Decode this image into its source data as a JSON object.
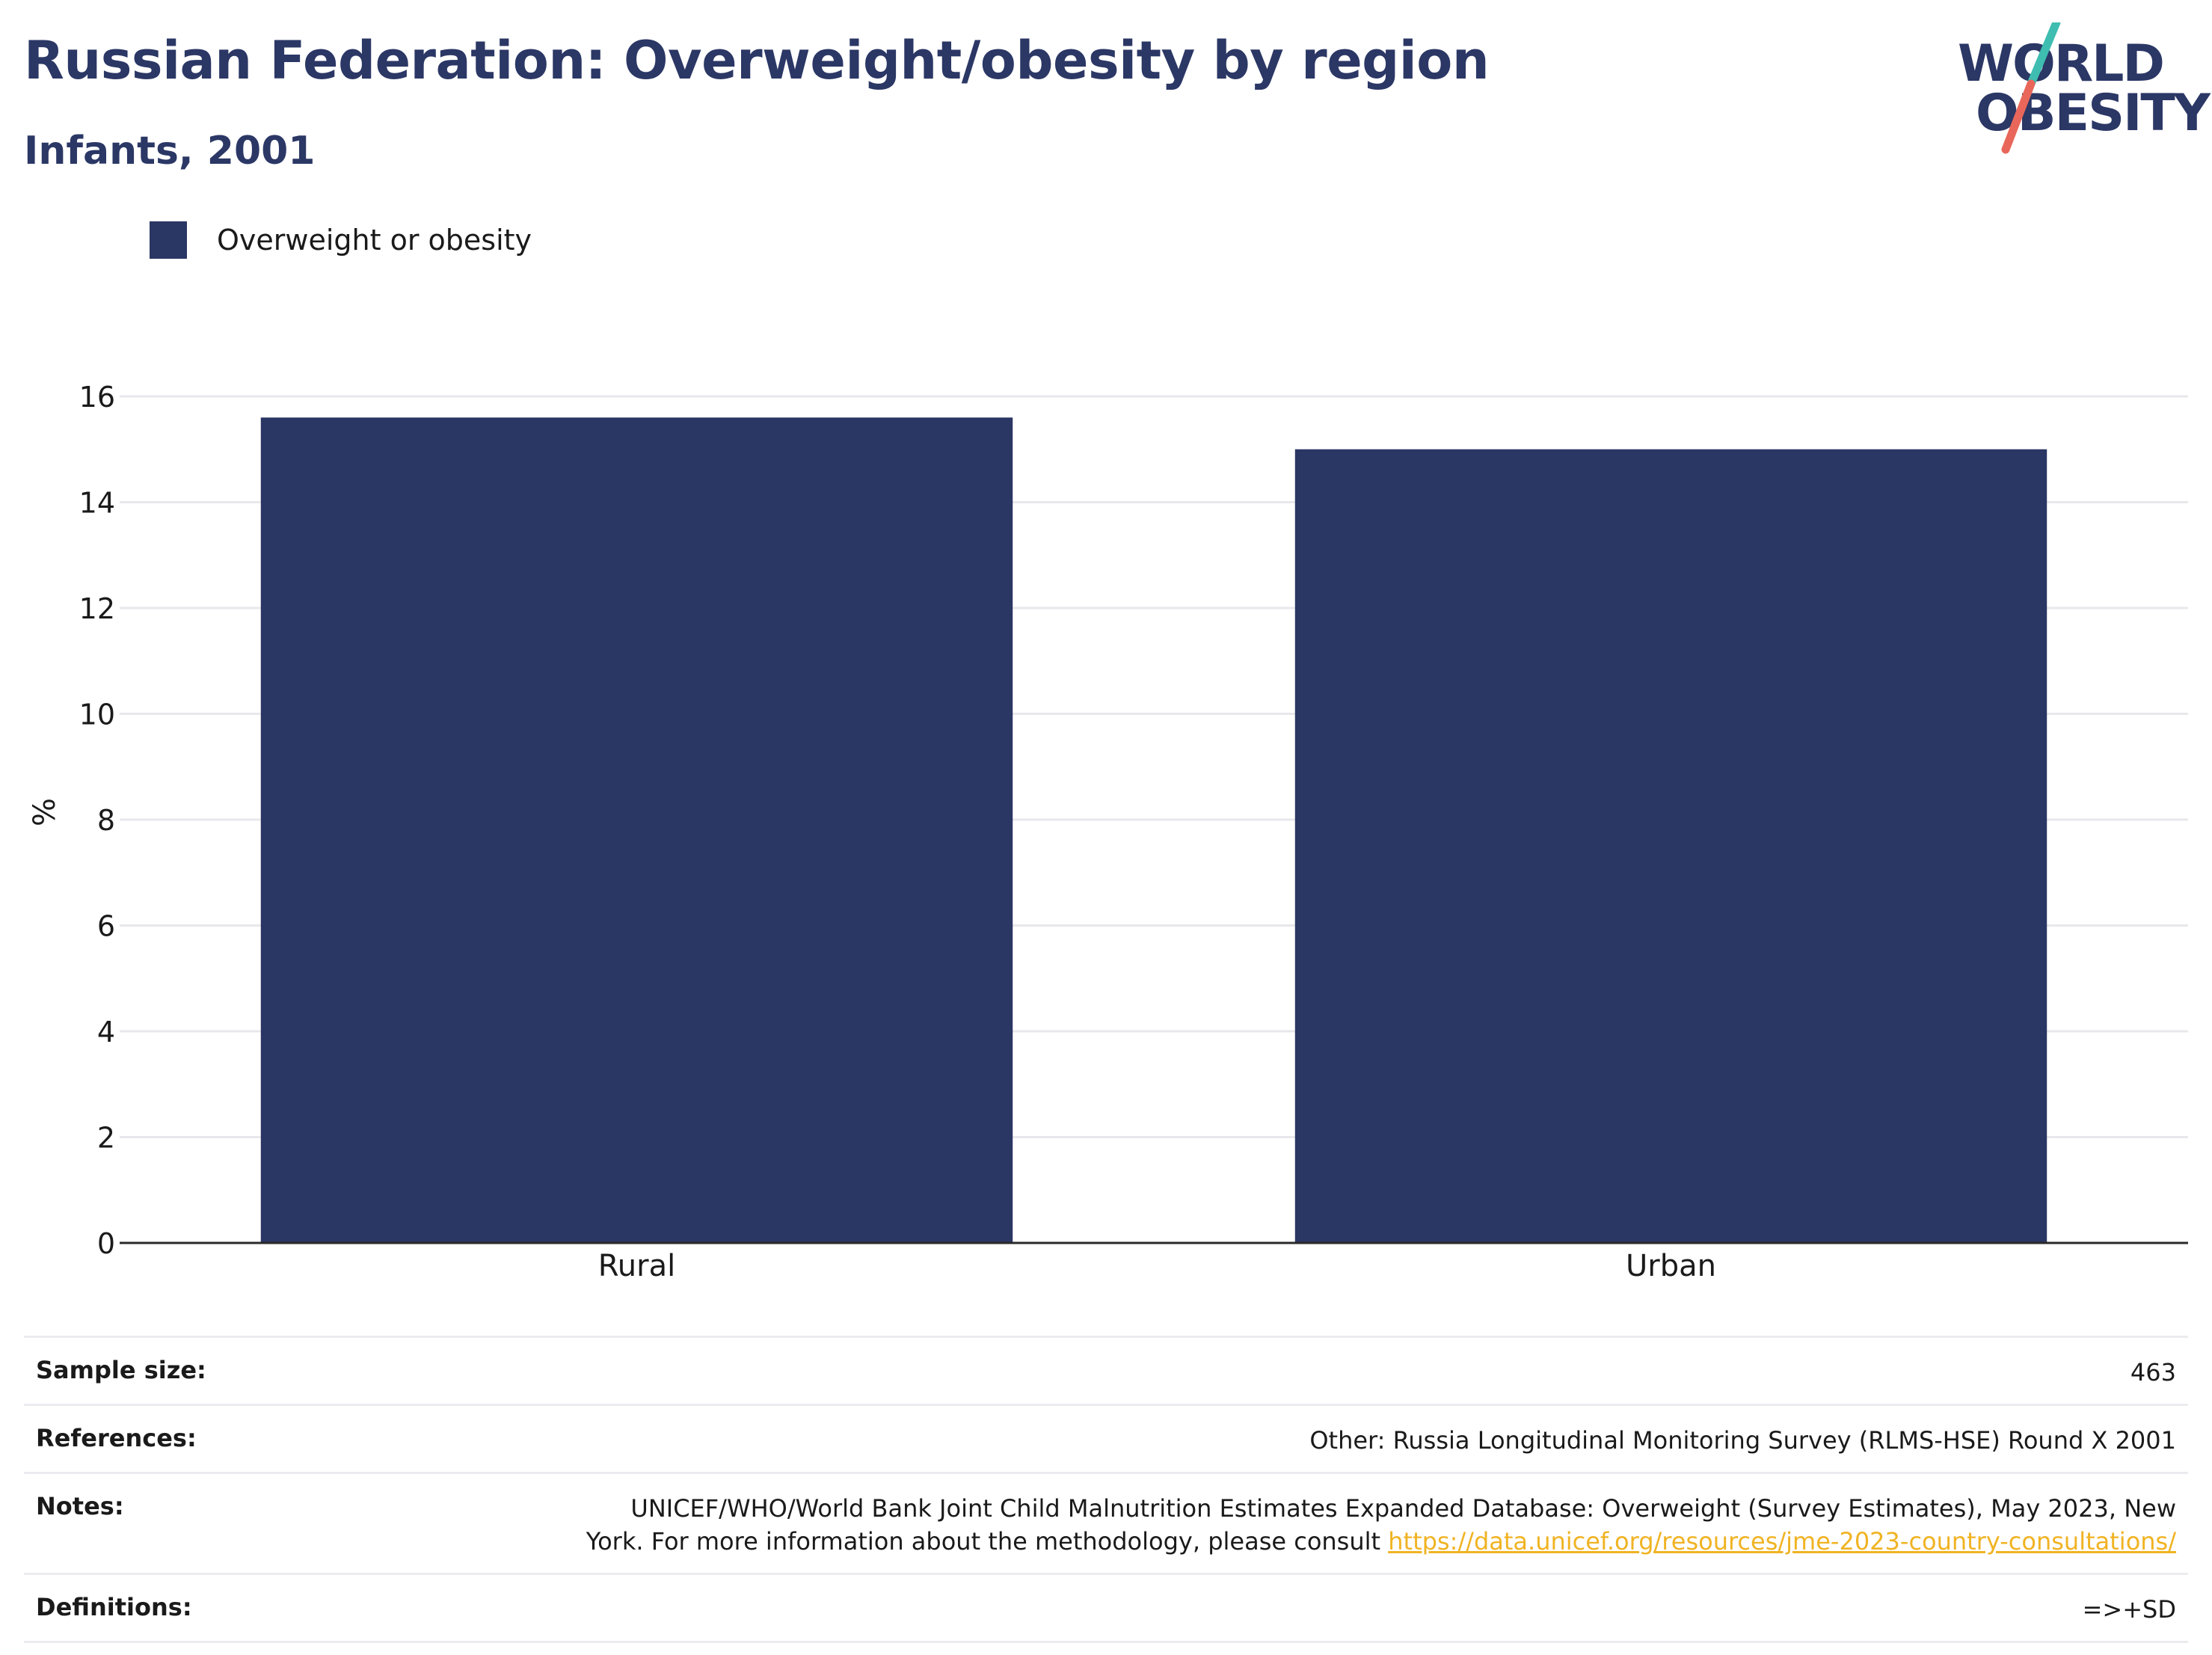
{
  "header": {
    "title": "Russian Federation: Overweight/obesity by region",
    "subtitle": "Infants, 2001"
  },
  "logo": {
    "line1": "WORLD",
    "line2": "OBESITY",
    "colors": {
      "text": "#2b3765",
      "slash_top": "#3ebdb0",
      "slash_bottom": "#e8675a"
    }
  },
  "legend": {
    "items": [
      {
        "label": "Overweight or obesity",
        "color": "#2a3663"
      }
    ]
  },
  "chart_data": {
    "type": "bar",
    "categories": [
      "Rural",
      "Urban"
    ],
    "series": [
      {
        "name": "Overweight or obesity",
        "values": [
          15.6,
          15.0
        ],
        "color": "#2a3663"
      }
    ],
    "ylabel": "%",
    "xlabel": "",
    "ylim": [
      0,
      16
    ],
    "yticks": [
      0,
      2,
      4,
      6,
      8,
      10,
      12,
      14,
      16
    ],
    "grid": true,
    "legend_position": "top-left"
  },
  "info": {
    "sample_size_label": "Sample size:",
    "sample_size_value": "463",
    "references_label": "References:",
    "references_value": "Other: Russia Longitudinal Monitoring Survey (RLMS-HSE) Round X 2001",
    "notes_label": "Notes:",
    "notes_line1": "UNICEF/WHO/World Bank Joint Child Malnutrition Estimates Expanded Database: Overweight (Survey Estimates), May 2023, New",
    "notes_line2_prefix": "York. For more information about the methodology, please consult ",
    "notes_link": "https://data.unicef.org/resources/jme-2023-country-consultations/",
    "definitions_label": "Definitions:",
    "definitions_value": "=>+SD"
  }
}
